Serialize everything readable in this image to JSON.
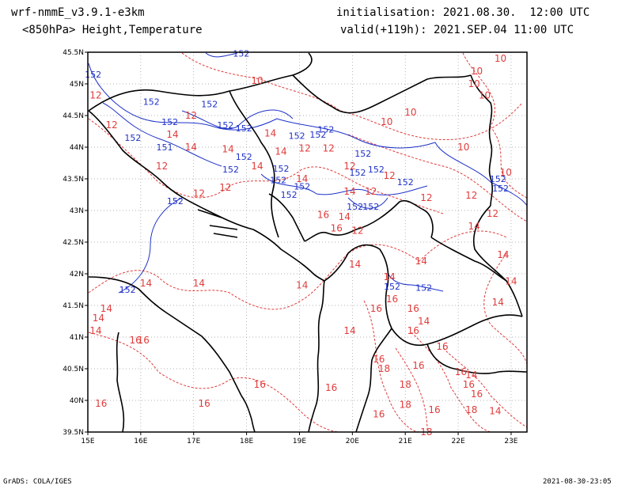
{
  "header": {
    "model": "wrf-nmmE_v3.9.1-e3km",
    "field": "<850hPa> Height,Temperature",
    "init": "initialisation: 2021.08.30.  12:00 UTC",
    "valid": "valid(+119h): 2021.SEP.04 11:00 UTC"
  },
  "footer": {
    "credit": "GrADS: COLA/IGES",
    "timestamp": "2021-08-30-23:05"
  },
  "axes": {
    "lon_labels": [
      "15E",
      "16E",
      "17E",
      "18E",
      "19E",
      "20E",
      "21E",
      "22E",
      "23E"
    ],
    "lat_labels": [
      "45.5N",
      "45N",
      "44.5N",
      "44N",
      "43.5N",
      "43N",
      "42.5N",
      "42N",
      "41.5N",
      "41N",
      "40.5N",
      "40N",
      "39.5N"
    ],
    "lon_range": [
      15,
      23.3
    ],
    "lat_range": [
      39.5,
      45.5
    ],
    "grid": true
  },
  "colors": {
    "temperature": "#e03c3c",
    "height": "#1e32c8",
    "coast": "#000000"
  },
  "contour_labels": {
    "temperature": [
      {
        "v": "10",
        "lon": 18.2,
        "lat": 45.05
      },
      {
        "v": "10",
        "lon": 22.8,
        "lat": 45.4
      },
      {
        "v": "10",
        "lon": 22.35,
        "lat": 45.2
      },
      {
        "v": "10",
        "lon": 22.3,
        "lat": 45.0
      },
      {
        "v": "10",
        "lon": 22.5,
        "lat": 44.82
      },
      {
        "v": "10",
        "lon": 21.1,
        "lat": 44.55
      },
      {
        "v": "10",
        "lon": 20.65,
        "lat": 44.4
      },
      {
        "v": "10",
        "lon": 22.1,
        "lat": 44.0
      },
      {
        "v": "10",
        "lon": 22.9,
        "lat": 43.6
      },
      {
        "v": "12",
        "lon": 15.15,
        "lat": 44.82
      },
      {
        "v": "12",
        "lon": 15.45,
        "lat": 44.35
      },
      {
        "v": "14",
        "lon": 16.6,
        "lat": 44.2
      },
      {
        "v": "12",
        "lon": 16.95,
        "lat": 44.5
      },
      {
        "v": "14",
        "lon": 16.95,
        "lat": 44.0
      },
      {
        "v": "14",
        "lon": 17.65,
        "lat": 43.97
      },
      {
        "v": "12",
        "lon": 16.4,
        "lat": 43.7
      },
      {
        "v": "12",
        "lon": 17.1,
        "lat": 43.27
      },
      {
        "v": "12",
        "lon": 17.6,
        "lat": 43.36
      },
      {
        "v": "14",
        "lon": 18.2,
        "lat": 43.7
      },
      {
        "v": "14",
        "lon": 18.65,
        "lat": 43.93
      },
      {
        "v": "14",
        "lon": 18.45,
        "lat": 44.22
      },
      {
        "v": "12",
        "lon": 19.1,
        "lat": 43.98
      },
      {
        "v": "12",
        "lon": 19.55,
        "lat": 43.98
      },
      {
        "v": "14",
        "lon": 19.05,
        "lat": 43.5
      },
      {
        "v": "12",
        "lon": 19.95,
        "lat": 43.7
      },
      {
        "v": "14",
        "lon": 19.95,
        "lat": 43.3
      },
      {
        "v": "12",
        "lon": 20.35,
        "lat": 43.3
      },
      {
        "v": "12",
        "lon": 20.7,
        "lat": 43.55
      },
      {
        "v": "12",
        "lon": 21.4,
        "lat": 43.2
      },
      {
        "v": "12",
        "lon": 22.25,
        "lat": 43.24
      },
      {
        "v": "12",
        "lon": 22.65,
        "lat": 42.95
      },
      {
        "v": "16",
        "lon": 19.45,
        "lat": 42.93
      },
      {
        "v": "14",
        "lon": 19.85,
        "lat": 42.9
      },
      {
        "v": "16",
        "lon": 19.7,
        "lat": 42.72
      },
      {
        "v": "12",
        "lon": 20.1,
        "lat": 42.68
      },
      {
        "v": "14",
        "lon": 20.05,
        "lat": 42.15
      },
      {
        "v": "14",
        "lon": 21.3,
        "lat": 42.2
      },
      {
        "v": "14",
        "lon": 22.3,
        "lat": 42.75
      },
      {
        "v": "14",
        "lon": 22.85,
        "lat": 42.3
      },
      {
        "v": "14",
        "lon": 23.0,
        "lat": 41.88
      },
      {
        "v": "14",
        "lon": 22.75,
        "lat": 41.55
      },
      {
        "v": "14",
        "lon": 20.7,
        "lat": 41.95
      },
      {
        "v": "16",
        "lon": 20.75,
        "lat": 41.6
      },
      {
        "v": "16",
        "lon": 21.15,
        "lat": 41.45
      },
      {
        "v": "14",
        "lon": 21.35,
        "lat": 41.25
      },
      {
        "v": "16",
        "lon": 21.15,
        "lat": 41.1
      },
      {
        "v": "16",
        "lon": 20.45,
        "lat": 41.45
      },
      {
        "v": "14",
        "lon": 19.95,
        "lat": 41.1
      },
      {
        "v": "14",
        "lon": 19.05,
        "lat": 41.82
      },
      {
        "v": "14",
        "lon": 17.1,
        "lat": 41.85
      },
      {
        "v": "14",
        "lon": 16.1,
        "lat": 41.85
      },
      {
        "v": "14",
        "lon": 15.35,
        "lat": 41.45
      },
      {
        "v": "14",
        "lon": 15.2,
        "lat": 41.3
      },
      {
        "v": "14",
        "lon": 15.15,
        "lat": 41.1
      },
      {
        "v": "16",
        "lon": 15.9,
        "lat": 40.95
      },
      {
        "v": "16",
        "lon": 16.05,
        "lat": 40.95
      },
      {
        "v": "16",
        "lon": 20.5,
        "lat": 40.65
      },
      {
        "v": "18",
        "lon": 20.6,
        "lat": 40.5
      },
      {
        "v": "16",
        "lon": 21.25,
        "lat": 40.55
      },
      {
        "v": "16",
        "lon": 21.7,
        "lat": 40.85
      },
      {
        "v": "16",
        "lon": 22.05,
        "lat": 40.45
      },
      {
        "v": "14",
        "lon": 22.25,
        "lat": 40.4
      },
      {
        "v": "18",
        "lon": 21.0,
        "lat": 40.25
      },
      {
        "v": "16",
        "lon": 22.2,
        "lat": 40.25
      },
      {
        "v": "16",
        "lon": 22.35,
        "lat": 40.1
      },
      {
        "v": "18",
        "lon": 21.0,
        "lat": 39.93
      },
      {
        "v": "16",
        "lon": 21.55,
        "lat": 39.85
      },
      {
        "v": "18",
        "lon": 22.25,
        "lat": 39.85
      },
      {
        "v": "14",
        "lon": 22.7,
        "lat": 39.83
      },
      {
        "v": "16",
        "lon": 20.5,
        "lat": 39.78
      },
      {
        "v": "18",
        "lon": 21.4,
        "lat": 39.5
      },
      {
        "v": "16",
        "lon": 19.6,
        "lat": 40.2
      },
      {
        "v": "16",
        "lon": 18.25,
        "lat": 40.25
      },
      {
        "v": "16",
        "lon": 17.2,
        "lat": 39.95
      },
      {
        "v": "16",
        "lon": 15.25,
        "lat": 39.95
      }
    ],
    "height": [
      {
        "v": "152",
        "lon": 17.9,
        "lat": 45.48
      },
      {
        "v": "152",
        "lon": 15.1,
        "lat": 45.15
      },
      {
        "v": "152",
        "lon": 16.2,
        "lat": 44.72
      },
      {
        "v": "152",
        "lon": 17.3,
        "lat": 44.68
      },
      {
        "v": "152",
        "lon": 16.55,
        "lat": 44.4
      },
      {
        "v": "152",
        "lon": 17.6,
        "lat": 44.35
      },
      {
        "v": "152",
        "lon": 17.95,
        "lat": 44.3
      },
      {
        "v": "152",
        "lon": 15.85,
        "lat": 44.15
      },
      {
        "v": "151",
        "lon": 16.45,
        "lat": 44.0
      },
      {
        "v": "152",
        "lon": 17.95,
        "lat": 43.85
      },
      {
        "v": "152",
        "lon": 17.7,
        "lat": 43.65
      },
      {
        "v": "152",
        "lon": 18.65,
        "lat": 43.66
      },
      {
        "v": "152",
        "lon": 18.6,
        "lat": 43.48
      },
      {
        "v": "152",
        "lon": 18.95,
        "lat": 44.18
      },
      {
        "v": "152",
        "lon": 19.35,
        "lat": 44.2
      },
      {
        "v": "152",
        "lon": 19.5,
        "lat": 44.28
      },
      {
        "v": "152",
        "lon": 20.2,
        "lat": 43.9
      },
      {
        "v": "152",
        "lon": 20.1,
        "lat": 43.6
      },
      {
        "v": "152",
        "lon": 20.45,
        "lat": 43.65
      },
      {
        "v": "152",
        "lon": 21.0,
        "lat": 43.45
      },
      {
        "v": "152",
        "lon": 19.05,
        "lat": 43.38
      },
      {
        "v": "152",
        "lon": 18.8,
        "lat": 43.25
      },
      {
        "v": "152",
        "lon": 20.05,
        "lat": 43.06
      },
      {
        "v": "152",
        "lon": 20.35,
        "lat": 43.06
      },
      {
        "v": "152",
        "lon": 16.65,
        "lat": 43.15
      },
      {
        "v": "152",
        "lon": 15.75,
        "lat": 41.75
      },
      {
        "v": "152",
        "lon": 22.75,
        "lat": 43.5
      },
      {
        "v": "152",
        "lon": 22.8,
        "lat": 43.35
      },
      {
        "v": "152",
        "lon": 20.75,
        "lat": 41.8
      },
      {
        "v": "152",
        "lon": 21.35,
        "lat": 41.78
      }
    ]
  }
}
